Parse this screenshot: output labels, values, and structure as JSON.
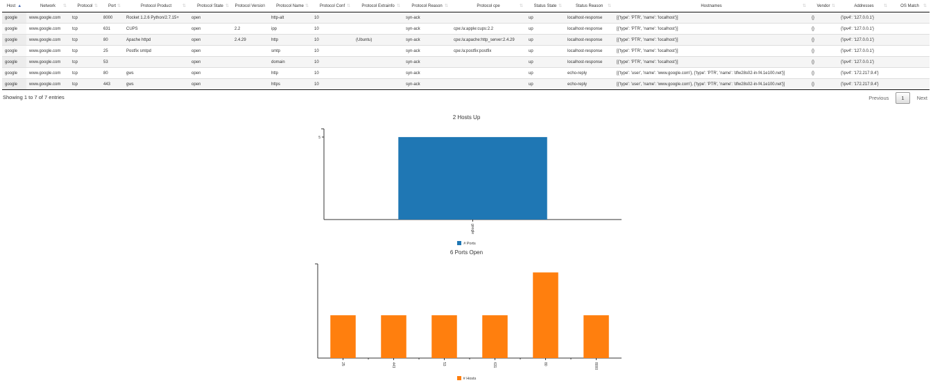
{
  "table": {
    "columns": [
      "Host",
      "Network",
      "Protocol",
      "Port",
      "Protocol Product",
      "Protocol State",
      "Protocol Version",
      "Protocol Name",
      "Protocol Conf",
      "Protocol Extrainfo",
      "Protocol Reason",
      "Protocol cpe",
      "Status State",
      "Status Reason",
      "Hostnames",
      "Vendor",
      "Addresses",
      "OS Match"
    ],
    "sorted_column": "Host",
    "sort_indicator": "▲",
    "unsorted_indicator": "⇅",
    "rows": [
      [
        "google",
        "www.google.com",
        "tcp",
        "8000",
        "Rocket 1.2.6 Python/2.7.15+",
        "open",
        "",
        "http-alt",
        "10",
        "",
        "syn-ack",
        "",
        "up",
        "localhost-response",
        "[{'type': 'PTR', 'name': 'localhost'}]",
        "{}",
        "{'ipv4': '127.0.0.1'}",
        ""
      ],
      [
        "google",
        "www.google.com",
        "tcp",
        "631",
        "CUPS",
        "open",
        "2.2",
        "ipp",
        "10",
        "",
        "syn-ack",
        "cpe:/a:apple:cups:2.2",
        "up",
        "localhost-response",
        "[{'type': 'PTR', 'name': 'localhost'}]",
        "{}",
        "{'ipv4': '127.0.0.1'}",
        ""
      ],
      [
        "google",
        "www.google.com",
        "tcp",
        "80",
        "Apache httpd",
        "open",
        "2.4.29",
        "http",
        "10",
        "(Ubuntu)",
        "syn-ack",
        "cpe:/a:apache:http_server:2.4.29",
        "up",
        "localhost-response",
        "[{'type': 'PTR', 'name': 'localhost'}]",
        "{}",
        "{'ipv4': '127.0.0.1'}",
        ""
      ],
      [
        "google",
        "www.google.com",
        "tcp",
        "25",
        "Postfix smtpd",
        "open",
        "",
        "smtp",
        "10",
        "",
        "syn-ack",
        "cpe:/a:postfix:postfix",
        "up",
        "localhost-response",
        "[{'type': 'PTR', 'name': 'localhost'}]",
        "{}",
        "{'ipv4': '127.0.0.1'}",
        ""
      ],
      [
        "google",
        "www.google.com",
        "tcp",
        "53",
        "",
        "open",
        "",
        "domain",
        "10",
        "",
        "syn-ack",
        "",
        "up",
        "localhost-response",
        "[{'type': 'PTR', 'name': 'localhost'}]",
        "{}",
        "{'ipv4': '127.0.0.1'}",
        ""
      ],
      [
        "google",
        "www.google.com",
        "tcp",
        "80",
        "gws",
        "open",
        "",
        "http",
        "10",
        "",
        "syn-ack",
        "",
        "up",
        "echo-reply",
        "[{'type': 'user', 'name': 'www.google.com'}, {'type': 'PTR', 'name': 'dfw28s02-in-f4.1e100.net'}]",
        "{}",
        "{'ipv4': '172.217.9.4'}",
        ""
      ],
      [
        "google",
        "www.google.com",
        "tcp",
        "443",
        "gws",
        "open",
        "",
        "https",
        "10",
        "",
        "syn-ack",
        "",
        "up",
        "echo-reply",
        "[{'type': 'user', 'name': 'www.google.com'}, {'type': 'PTR', 'name': 'dfw28s02-in-f4.1e100.net'}]",
        "{}",
        "{'ipv4': '172.217.9.4'}",
        ""
      ]
    ]
  },
  "footer": {
    "info": "Showing 1 to 7 of 7 entries",
    "previous": "Previous",
    "page": "1",
    "next": "Next"
  },
  "chart_data": [
    {
      "type": "bar",
      "title": "2 Hosts Up",
      "categories": [
        "google"
      ],
      "series": [
        {
          "name": "# Ports",
          "values": [
            5
          ],
          "color": "#1f77b4"
        }
      ],
      "ylim": [
        0,
        5.5
      ],
      "yticks": [
        5
      ],
      "grid": false,
      "legend": "bottom-center"
    },
    {
      "type": "bar",
      "title": "6 Ports Open",
      "categories": [
        "25",
        "443",
        "53",
        "631",
        "80",
        "8000"
      ],
      "series": [
        {
          "name": "# Hosts",
          "values": [
            1,
            1,
            1,
            1,
            2,
            1
          ],
          "color": "#ff7f0e"
        }
      ],
      "ylim": [
        0,
        2.2
      ],
      "yticks": [],
      "grid": false,
      "legend": "bottom-center"
    }
  ]
}
